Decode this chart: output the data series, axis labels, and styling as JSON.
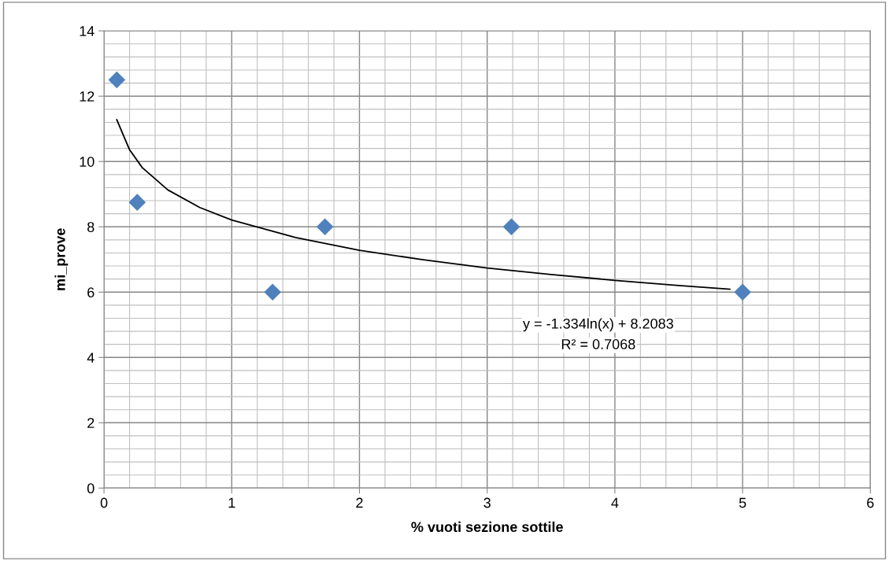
{
  "chart_data": {
    "type": "scatter",
    "xlabel": "% vuoti sezione sottile",
    "ylabel": "mi_prove",
    "xlim": [
      0,
      6
    ],
    "xticks": [
      0,
      1,
      2,
      3,
      4,
      5,
      6
    ],
    "ylim": [
      0,
      14
    ],
    "yticks": [
      0,
      2,
      4,
      6,
      8,
      10,
      12,
      14
    ],
    "grid": true,
    "marker": "diamond",
    "series": [
      {
        "type": "scatter",
        "color": "#4f81bd",
        "x": [
          0.1,
          0.26,
          1.32,
          1.73,
          3.19,
          5.0
        ],
        "values": [
          12.5,
          8.75,
          6,
          8,
          8,
          6
        ]
      },
      {
        "type": "line",
        "color": "#000000",
        "marker": "none",
        "x": [
          0.1,
          0.2,
          0.3,
          0.5,
          0.75,
          1,
          1.5,
          2,
          2.5,
          3,
          3.5,
          4,
          4.5,
          4.9
        ],
        "values": [
          11.28,
          10.36,
          9.81,
          9.13,
          8.59,
          8.21,
          7.67,
          7.28,
          6.99,
          6.74,
          6.54,
          6.36,
          6.2,
          6.09
        ]
      }
    ],
    "annotations": [
      "y = -1.334ln(x) + 8.2083",
      "R² = 0.7068"
    ]
  }
}
